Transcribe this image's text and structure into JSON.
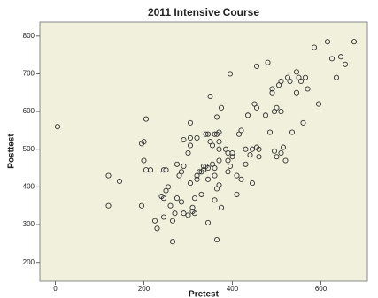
{
  "chart_data": {
    "type": "scatter",
    "title": "2011 Intensive Course",
    "x_label": "Pretest",
    "y_label": "Posttest",
    "color": "#333333",
    "grid": false,
    "xlim": [
      -35,
      705
    ],
    "ylim": [
      150,
      837
    ],
    "xticks": [
      0,
      200,
      400,
      600
    ],
    "yticks": [
      200,
      300,
      400,
      500,
      600,
      700,
      800
    ],
    "x": [
      5,
      120,
      120,
      145,
      195,
      200,
      200,
      205,
      215,
      205,
      195,
      225,
      230,
      240,
      245,
      245,
      250,
      255,
      250,
      245,
      260,
      265,
      265,
      270,
      275,
      275,
      280,
      285,
      285,
      290,
      290,
      290,
      300,
      305,
      305,
      305,
      305,
      300,
      310,
      310,
      315,
      315,
      320,
      320,
      320,
      325,
      330,
      330,
      335,
      335,
      340,
      340,
      345,
      345,
      345,
      345,
      350,
      350,
      355,
      355,
      360,
      360,
      360,
      360,
      365,
      365,
      365,
      365,
      370,
      370,
      370,
      370,
      370,
      375,
      375,
      385,
      390,
      390,
      390,
      395,
      395,
      400,
      400,
      410,
      410,
      415,
      420,
      420,
      430,
      430,
      435,
      440,
      445,
      445,
      450,
      455,
      455,
      460,
      460,
      455,
      475,
      480,
      485,
      490,
      490,
      495,
      495,
      500,
      500,
      505,
      510,
      510,
      510,
      515,
      520,
      525,
      530,
      535,
      545,
      545,
      550,
      555,
      560,
      565,
      570,
      585,
      595,
      615,
      625,
      635,
      645,
      655,
      675
    ],
    "y": [
      560,
      430,
      350,
      415,
      515,
      520,
      470,
      445,
      445,
      580,
      350,
      310,
      290,
      375,
      370,
      320,
      390,
      400,
      445,
      445,
      350,
      310,
      255,
      330,
      460,
      370,
      430,
      440,
      360,
      525,
      455,
      330,
      490,
      530,
      510,
      570,
      410,
      325,
      345,
      335,
      330,
      370,
      430,
      420,
      530,
      440,
      440,
      380,
      455,
      445,
      455,
      540,
      540,
      450,
      420,
      305,
      640,
      520,
      510,
      460,
      540,
      450,
      430,
      365,
      540,
      585,
      395,
      260,
      545,
      520,
      500,
      470,
      405,
      610,
      345,
      500,
      490,
      470,
      440,
      700,
      455,
      490,
      480,
      430,
      380,
      540,
      550,
      420,
      500,
      460,
      590,
      485,
      500,
      410,
      620,
      610,
      505,
      500,
      480,
      720,
      590,
      730,
      545,
      660,
      650,
      600,
      495,
      610,
      480,
      670,
      680,
      600,
      490,
      505,
      470,
      690,
      680,
      545,
      705,
      650,
      690,
      680,
      570,
      690,
      660,
      770,
      620,
      785,
      740,
      690,
      745,
      725,
      785
    ]
  }
}
